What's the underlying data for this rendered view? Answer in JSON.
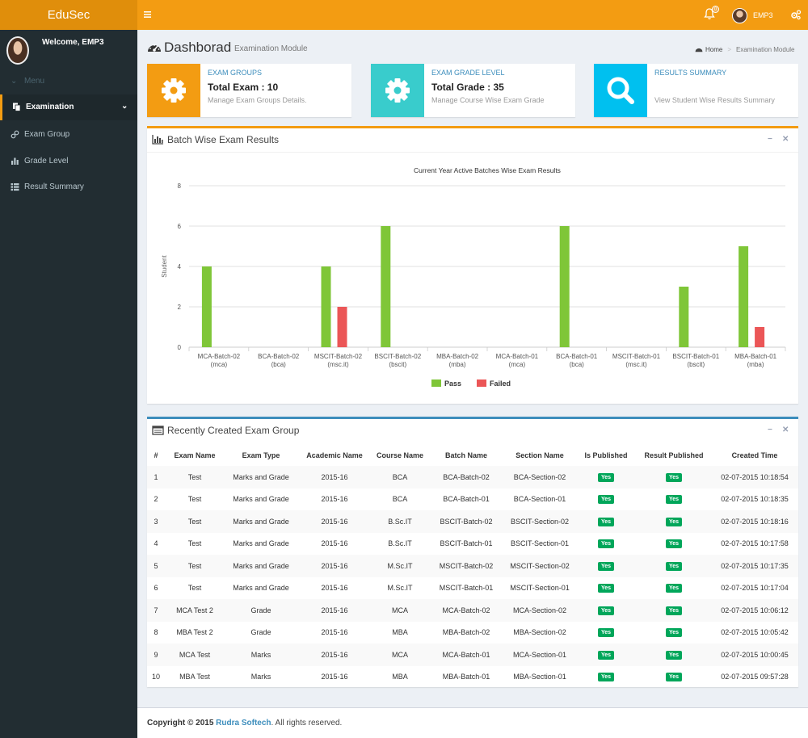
{
  "header": {
    "logo": "EduSec",
    "notification_count": "0",
    "user_name": "EMP3"
  },
  "sidebar": {
    "welcome": "Welcome, EMP3",
    "menu_label": "Menu",
    "items": [
      {
        "label": "Examination",
        "icon": "copy-icon",
        "active": true
      },
      {
        "label": "Exam Group",
        "icon": "link-icon"
      },
      {
        "label": "Grade Level",
        "icon": "bar-chart-icon"
      },
      {
        "label": "Result Summary",
        "icon": "list-icon"
      }
    ]
  },
  "page": {
    "title": "Dashborad",
    "subtitle": "Examination Module",
    "breadcrumb_home": "Home",
    "breadcrumb_current": "Examination Module"
  },
  "info_boxes": [
    {
      "title": "EXAM GROUPS",
      "number": "Total Exam : 10",
      "desc": "Manage Exam Groups Details.",
      "color": "#f39c12",
      "icon": "gear-icon"
    },
    {
      "title": "EXAM GRADE LEVEL",
      "number": "Total Grade : 35",
      "desc": "Manage Course Wise Exam Grade",
      "color": "#39cccc",
      "icon": "gear-icon"
    },
    {
      "title": "RESULTS SUMMARY",
      "number": "",
      "desc": "View Student Wise Results Summary",
      "color": "#00c0ef",
      "icon": "search-icon"
    }
  ],
  "chart_box": {
    "title": "Batch Wise Exam Results"
  },
  "chart_data": {
    "type": "bar",
    "title": "Current Year Active Batches Wise Exam Results",
    "ylabel": "Student",
    "xlabel": "",
    "ylim": [
      0,
      8
    ],
    "yticks": [
      0,
      2,
      4,
      6,
      8
    ],
    "categories": [
      [
        "MCA-Batch-02",
        "(mca)"
      ],
      [
        "BCA-Batch-02",
        "(bca)"
      ],
      [
        "MSCIT-Batch-02",
        "(msc.it)"
      ],
      [
        "BSCIT-Batch-02",
        "(bscit)"
      ],
      [
        "MBA-Batch-02",
        "(mba)"
      ],
      [
        "MCA-Batch-01",
        "(mca)"
      ],
      [
        "BCA-Batch-01",
        "(bca)"
      ],
      [
        "MSCIT-Batch-01",
        "(msc.it)"
      ],
      [
        "BSCIT-Batch-01",
        "(bscit)"
      ],
      [
        "MBA-Batch-01",
        "(mba)"
      ]
    ],
    "series": [
      {
        "name": "Pass",
        "color": "#7fc638",
        "values": [
          4,
          0,
          4,
          6,
          0,
          0,
          6,
          0,
          3,
          5
        ]
      },
      {
        "name": "Failed",
        "color": "#eb5657",
        "values": [
          0,
          0,
          2,
          0,
          0,
          0,
          0,
          0,
          0,
          1
        ]
      }
    ],
    "legend": "bottom-center",
    "grid": true
  },
  "table_box": {
    "title": "Recently Created Exam Group",
    "columns": [
      "#",
      "Exam Name",
      "Exam Type",
      "Academic Name",
      "Course Name",
      "Batch Name",
      "Section Name",
      "Is Published",
      "Result Published",
      "Created Time"
    ],
    "rows": [
      [
        "1",
        "Test",
        "Marks and Grade",
        "2015-16",
        "BCA",
        "BCA-Batch-02",
        "BCA-Section-02",
        "Yes",
        "Yes",
        "02-07-2015 10:18:54"
      ],
      [
        "2",
        "Test",
        "Marks and Grade",
        "2015-16",
        "BCA",
        "BCA-Batch-01",
        "BCA-Section-01",
        "Yes",
        "Yes",
        "02-07-2015 10:18:35"
      ],
      [
        "3",
        "Test",
        "Marks and Grade",
        "2015-16",
        "B.Sc.IT",
        "BSCIT-Batch-02",
        "BSCIT-Section-02",
        "Yes",
        "Yes",
        "02-07-2015 10:18:16"
      ],
      [
        "4",
        "Test",
        "Marks and Grade",
        "2015-16",
        "B.Sc.IT",
        "BSCIT-Batch-01",
        "BSCIT-Section-01",
        "Yes",
        "Yes",
        "02-07-2015 10:17:58"
      ],
      [
        "5",
        "Test",
        "Marks and Grade",
        "2015-16",
        "M.Sc.IT",
        "MSCIT-Batch-02",
        "MSCIT-Section-02",
        "Yes",
        "Yes",
        "02-07-2015 10:17:35"
      ],
      [
        "6",
        "Test",
        "Marks and Grade",
        "2015-16",
        "M.Sc.IT",
        "MSCIT-Batch-01",
        "MSCIT-Section-01",
        "Yes",
        "Yes",
        "02-07-2015 10:17:04"
      ],
      [
        "7",
        "MCA Test 2",
        "Grade",
        "2015-16",
        "MCA",
        "MCA-Batch-02",
        "MCA-Section-02",
        "Yes",
        "Yes",
        "02-07-2015 10:06:12"
      ],
      [
        "8",
        "MBA Test 2",
        "Grade",
        "2015-16",
        "MBA",
        "MBA-Batch-02",
        "MBA-Section-02",
        "Yes",
        "Yes",
        "02-07-2015 10:05:42"
      ],
      [
        "9",
        "MCA Test",
        "Marks",
        "2015-16",
        "MCA",
        "MCA-Batch-01",
        "MCA-Section-01",
        "Yes",
        "Yes",
        "02-07-2015 10:00:45"
      ],
      [
        "10",
        "MBA Test",
        "Marks",
        "2015-16",
        "MBA",
        "MBA-Batch-01",
        "MBA-Section-01",
        "Yes",
        "Yes",
        "02-07-2015 09:57:28"
      ]
    ]
  },
  "footer": {
    "prefix": "Copyright © 2015",
    "brand": "Rudra Softech",
    "suffix": ". All rights reserved."
  }
}
